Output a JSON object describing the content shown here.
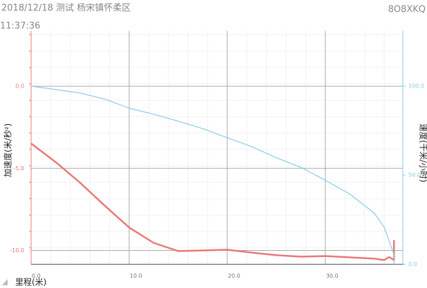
{
  "header": {
    "title": "2018/12/18 测试 杨宋镇怀柔区",
    "plate": "8O8XKQ",
    "time": "11:37:36"
  },
  "chart_data": {
    "type": "line",
    "y_label": "加速度(米/秒²)",
    "y2_label": "速度(千米/小时)",
    "x_label": "里程(米)",
    "xlim": [
      0,
      37.9
    ],
    "ylim": [
      -10.84,
      3.36
    ],
    "y2lim": [
      0,
      130.9
    ],
    "xticks": [
      {
        "value": 0,
        "label": "0.0"
      },
      {
        "value": 10,
        "label": "10.0"
      },
      {
        "value": 20,
        "label": "20.0"
      },
      {
        "value": 30,
        "label": "30.0"
      }
    ],
    "yticks": [
      {
        "value": 0,
        "label": "0.0"
      },
      {
        "value": -5,
        "label": "-5.0"
      },
      {
        "value": -10,
        "label": "-10.0"
      }
    ],
    "y2ticks": [
      {
        "value": 0,
        "label": "0.0"
      },
      {
        "value": 50,
        "label": "50.0"
      },
      {
        "value": 100,
        "label": "100.0"
      }
    ],
    "grid": true,
    "series": [
      {
        "name": "加速度",
        "color": "#e87878",
        "axis": "y",
        "x": [
          0,
          2.5,
          5,
          7.5,
          10,
          12.5,
          15,
          17.5,
          20,
          22.5,
          25,
          27.5,
          30,
          32.5,
          35,
          36,
          36.5,
          37,
          37
        ],
        "values": [
          -3.49,
          -4.62,
          -5.88,
          -7.27,
          -8.61,
          -9.54,
          -10.04,
          -10.0,
          -9.96,
          -10.13,
          -10.29,
          -10.38,
          -10.34,
          -10.42,
          -10.5,
          -10.59,
          -10.4,
          -10.59,
          -9.37
        ]
      },
      {
        "name": "速度",
        "color": "#87cbe8",
        "axis": "y2",
        "x": [
          0,
          5,
          7.5,
          10,
          12.5,
          15,
          17.5,
          20,
          22.5,
          25,
          27.5,
          30,
          32.5,
          35,
          36,
          37,
          37
        ],
        "values": [
          100,
          96.1,
          92.7,
          87.6,
          84.2,
          80.3,
          76.1,
          71.0,
          66.0,
          59.8,
          54.4,
          47.1,
          39.4,
          28.6,
          20.8,
          5.4,
          0
        ]
      }
    ]
  }
}
